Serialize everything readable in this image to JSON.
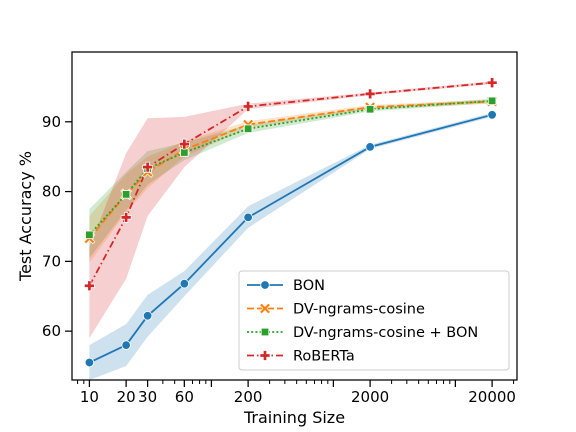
{
  "chart_data": {
    "type": "line",
    "xscale": "log",
    "xlabel": "Training Size",
    "ylabel": "Test Accuracy %",
    "xlim": [
      7.2,
      32000
    ],
    "ylim": [
      53,
      100
    ],
    "xticks": [
      10,
      20,
      30,
      60,
      200,
      2000,
      20000
    ],
    "yticks": [
      60,
      70,
      80,
      90
    ],
    "legend_position": "lower-right",
    "x": [
      10,
      20,
      30,
      60,
      200,
      2000,
      20000
    ],
    "series": [
      {
        "name": "BON",
        "color": "#1f77b4",
        "line_style": "solid",
        "marker": "circle",
        "values": [
          55.5,
          58.0,
          62.2,
          66.8,
          76.3,
          86.4,
          91.0
        ],
        "ci_lower": [
          53.0,
          55.0,
          59.2,
          65.0,
          74.8,
          86.1,
          90.7
        ],
        "ci_upper": [
          58.0,
          61.0,
          65.2,
          68.6,
          77.9,
          86.7,
          91.3
        ]
      },
      {
        "name": "DV-ngrams-cosine",
        "color": "#ff7f0e",
        "line_style": "dashed",
        "marker": "x",
        "values": [
          73.3,
          79.6,
          82.8,
          86.0,
          89.6,
          92.1,
          92.9
        ],
        "ci_lower": [
          69.8,
          77.0,
          80.5,
          85.0,
          89.1,
          91.8,
          92.6
        ],
        "ci_upper": [
          76.5,
          82.5,
          85.0,
          87.2,
          90.1,
          92.4,
          93.2
        ]
      },
      {
        "name": "DV-ngrams-cosine + BON",
        "color": "#2ca02c",
        "line_style": "dotted",
        "marker": "square",
        "values": [
          73.8,
          79.6,
          83.3,
          85.6,
          89.0,
          91.8,
          93.0
        ],
        "ci_lower": [
          70.5,
          77.3,
          81.0,
          84.5,
          88.4,
          91.5,
          92.7
        ],
        "ci_upper": [
          77.5,
          82.8,
          85.8,
          87.0,
          89.6,
          92.1,
          93.3
        ]
      },
      {
        "name": "RoBERTa",
        "color": "#d62728",
        "line_style": "dashdot",
        "marker": "plus",
        "values": [
          66.5,
          76.3,
          83.5,
          86.8,
          92.2,
          94.0,
          95.6
        ],
        "ci_lower": [
          59.0,
          67.5,
          76.5,
          83.5,
          91.8,
          93.8,
          95.4
        ],
        "ci_upper": [
          72.0,
          85.5,
          90.5,
          90.7,
          92.6,
          94.2,
          95.8
        ]
      }
    ]
  }
}
